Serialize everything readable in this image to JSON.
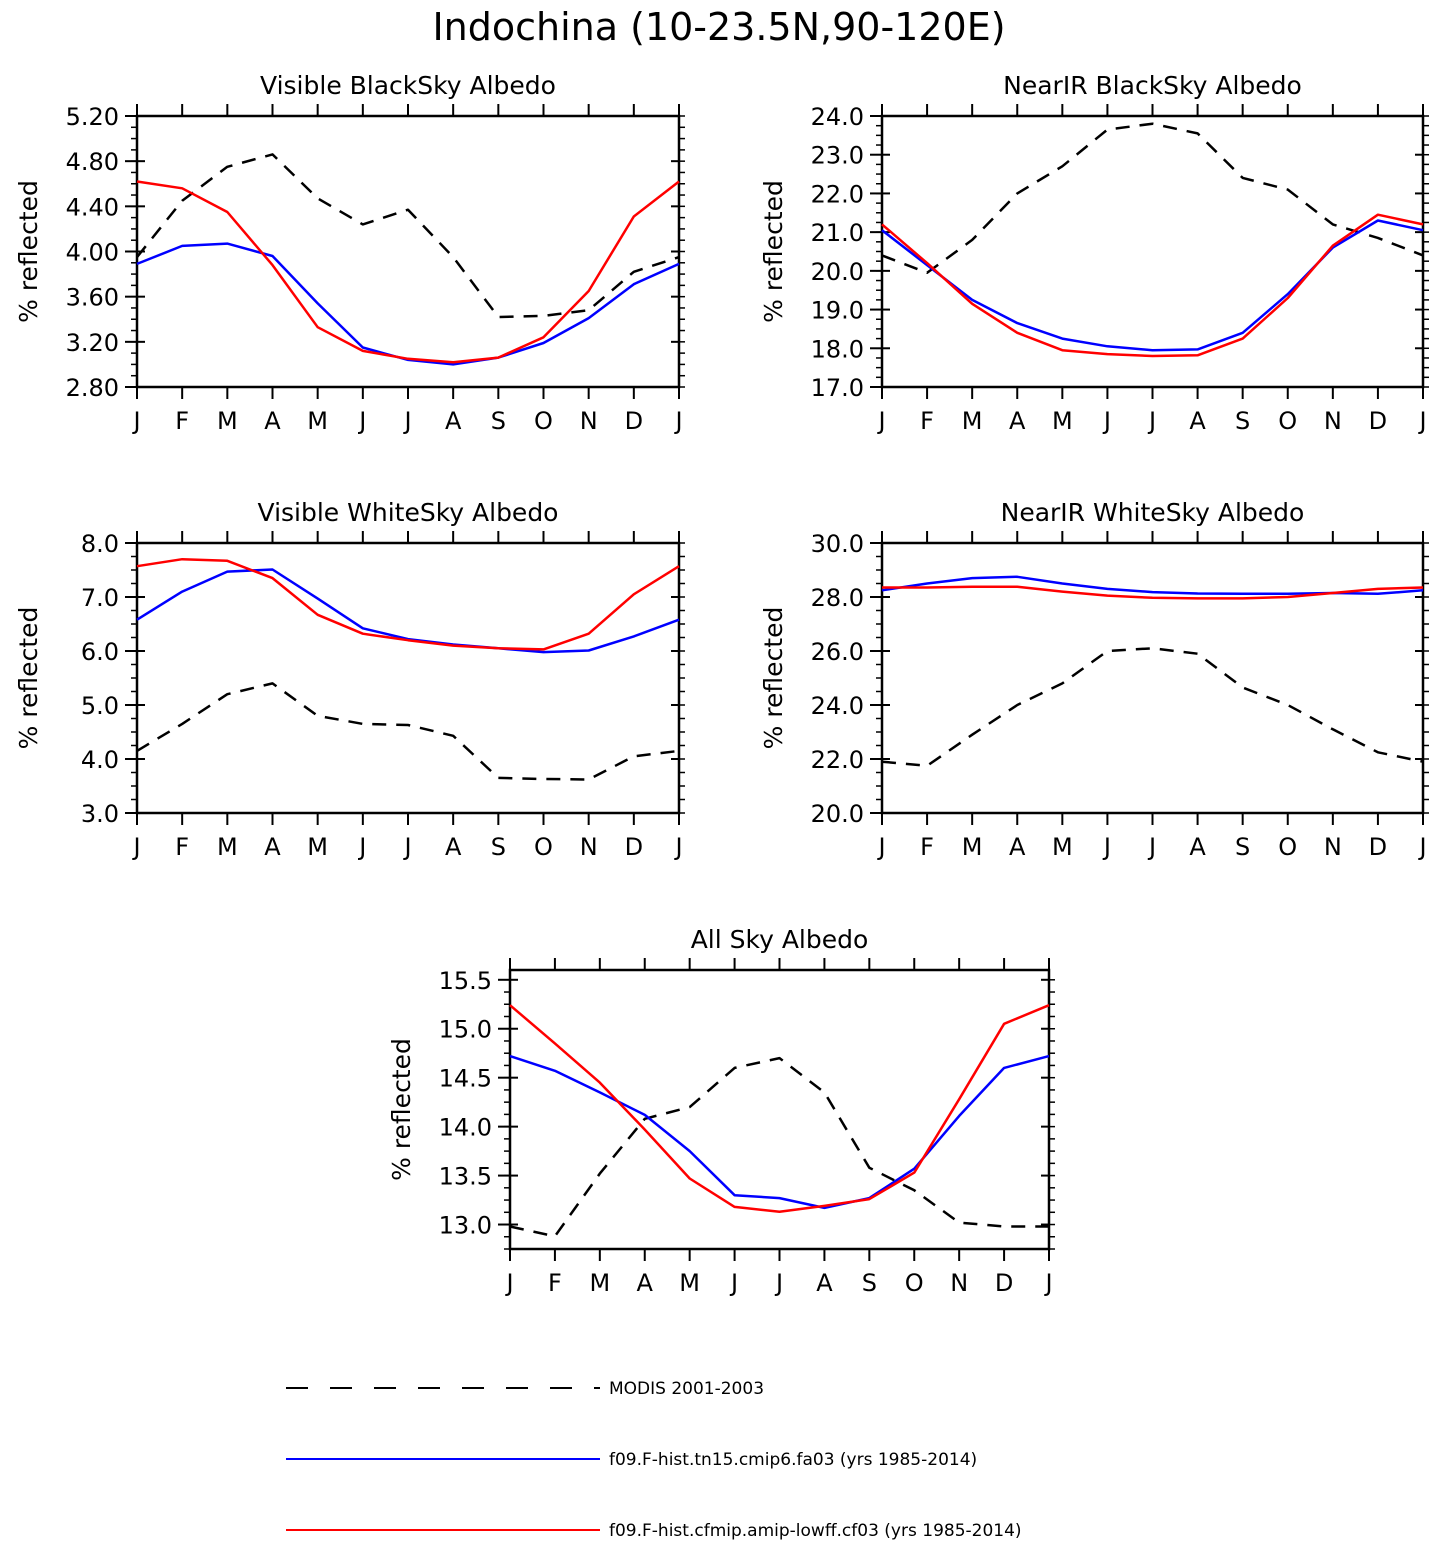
{
  "figure_title": "Indochina (10-23.5N,90-120E)",
  "colors": {
    "modis": "#000000",
    "model_a": "#0000ff",
    "model_b": "#ff0000"
  },
  "legend": [
    {
      "label": "MODIS 2001-2003",
      "color": "#000000",
      "dashed": true
    },
    {
      "label": "f09.F-hist.tn15.cmip6.fa03 (yrs 1985-2014)",
      "color": "#0000ff",
      "dashed": false
    },
    {
      "label": "f09.F-hist.cfmip.amip-lowff.cf03 (yrs 1985-2014)",
      "color": "#ff0000",
      "dashed": false
    }
  ],
  "chart_data": [
    {
      "type": "line",
      "title": "Visible BlackSky Albedo",
      "ylabel": "% reflected",
      "x": [
        "J",
        "F",
        "M",
        "A",
        "M",
        "J",
        "J",
        "A",
        "S",
        "O",
        "N",
        "D",
        "J"
      ],
      "ylim": [
        2.8,
        5.2
      ],
      "yticks": [
        "2.80",
        "3.20",
        "3.60",
        "4.00",
        "4.40",
        "4.80",
        "5.20"
      ],
      "series": [
        {
          "key": "modis",
          "dashed": true,
          "values": [
            3.95,
            4.45,
            4.75,
            4.86,
            4.47,
            4.24,
            4.37,
            3.95,
            3.42,
            3.43,
            3.48,
            3.82,
            3.95
          ]
        },
        {
          "key": "model_a",
          "dashed": false,
          "values": [
            3.89,
            4.05,
            4.07,
            3.96,
            3.54,
            3.15,
            3.04,
            3.0,
            3.06,
            3.19,
            3.41,
            3.71,
            3.89
          ]
        },
        {
          "key": "model_b",
          "dashed": false,
          "values": [
            4.62,
            4.56,
            4.35,
            3.88,
            3.33,
            3.12,
            3.05,
            3.02,
            3.06,
            3.24,
            3.65,
            4.31,
            4.62
          ]
        }
      ]
    },
    {
      "type": "line",
      "title": "NearIR BlackSky Albedo",
      "ylabel": "% reflected",
      "x": [
        "J",
        "F",
        "M",
        "A",
        "M",
        "J",
        "J",
        "A",
        "S",
        "O",
        "N",
        "D",
        "J"
      ],
      "ylim": [
        17.0,
        24.0
      ],
      "yticks": [
        "17.0",
        "18.0",
        "19.0",
        "20.0",
        "21.0",
        "22.0",
        "23.0",
        "24.0"
      ],
      "series": [
        {
          "key": "modis",
          "dashed": true,
          "values": [
            20.4,
            19.95,
            20.8,
            22.0,
            22.7,
            23.65,
            23.8,
            23.55,
            22.4,
            22.1,
            21.2,
            20.85,
            20.4
          ]
        },
        {
          "key": "model_a",
          "dashed": false,
          "values": [
            21.05,
            20.15,
            19.25,
            18.65,
            18.25,
            18.05,
            17.95,
            17.97,
            18.4,
            19.4,
            20.6,
            21.3,
            21.05
          ]
        },
        {
          "key": "model_b",
          "dashed": false,
          "values": [
            21.2,
            20.2,
            19.15,
            18.4,
            17.95,
            17.85,
            17.8,
            17.82,
            18.25,
            19.3,
            20.65,
            21.45,
            21.2
          ]
        }
      ]
    },
    {
      "type": "line",
      "title": "Visible WhiteSky Albedo",
      "ylabel": "% reflected",
      "x": [
        "J",
        "F",
        "M",
        "A",
        "M",
        "J",
        "J",
        "A",
        "S",
        "O",
        "N",
        "D",
        "J"
      ],
      "ylim": [
        3.0,
        8.0
      ],
      "yticks": [
        "3.0",
        "4.0",
        "5.0",
        "6.0",
        "7.0",
        "8.0"
      ],
      "series": [
        {
          "key": "modis",
          "dashed": true,
          "values": [
            4.15,
            4.65,
            5.2,
            5.4,
            4.8,
            4.65,
            4.63,
            4.43,
            3.65,
            3.63,
            3.62,
            4.05,
            4.15
          ]
        },
        {
          "key": "model_a",
          "dashed": false,
          "values": [
            6.58,
            7.1,
            7.47,
            7.51,
            6.97,
            6.42,
            6.22,
            6.12,
            6.05,
            5.98,
            6.01,
            6.27,
            6.58
          ]
        },
        {
          "key": "model_b",
          "dashed": false,
          "values": [
            7.57,
            7.7,
            7.67,
            7.35,
            6.67,
            6.32,
            6.2,
            6.1,
            6.05,
            6.03,
            6.32,
            7.05,
            7.57
          ]
        }
      ]
    },
    {
      "type": "line",
      "title": "NearIR WhiteSky Albedo",
      "ylabel": "% reflected",
      "x": [
        "J",
        "F",
        "M",
        "A",
        "M",
        "J",
        "J",
        "A",
        "S",
        "O",
        "N",
        "D",
        "J"
      ],
      "ylim": [
        20.0,
        30.0
      ],
      "yticks": [
        "20.0",
        "22.0",
        "24.0",
        "26.0",
        "28.0",
        "30.0"
      ],
      "series": [
        {
          "key": "modis",
          "dashed": true,
          "values": [
            21.9,
            21.75,
            22.9,
            24.0,
            24.8,
            26.0,
            26.1,
            25.9,
            24.65,
            24.0,
            23.1,
            22.25,
            21.9
          ]
        },
        {
          "key": "model_a",
          "dashed": false,
          "values": [
            28.25,
            28.5,
            28.7,
            28.75,
            28.5,
            28.3,
            28.18,
            28.13,
            28.12,
            28.12,
            28.15,
            28.12,
            28.25
          ]
        },
        {
          "key": "model_b",
          "dashed": false,
          "values": [
            28.35,
            28.35,
            28.38,
            28.38,
            28.2,
            28.05,
            27.97,
            27.95,
            27.95,
            28.0,
            28.15,
            28.3,
            28.35
          ]
        }
      ]
    },
    {
      "type": "line",
      "title": "All Sky Albedo",
      "ylabel": "% reflected",
      "x": [
        "J",
        "F",
        "M",
        "A",
        "M",
        "J",
        "J",
        "A",
        "S",
        "O",
        "N",
        "D",
        "J"
      ],
      "ylim": [
        12.75,
        15.6
      ],
      "yticks": [
        "13.0",
        "13.5",
        "14.0",
        "14.5",
        "15.0",
        "15.5"
      ],
      "series": [
        {
          "key": "modis",
          "dashed": true,
          "values": [
            12.98,
            12.88,
            13.52,
            14.08,
            14.2,
            14.6,
            14.7,
            14.35,
            13.58,
            13.35,
            13.02,
            12.98,
            12.98
          ]
        },
        {
          "key": "model_a",
          "dashed": false,
          "values": [
            14.72,
            14.57,
            14.35,
            14.12,
            13.75,
            13.3,
            13.27,
            13.17,
            13.27,
            13.57,
            14.11,
            14.6,
            14.72
          ]
        },
        {
          "key": "model_b",
          "dashed": false,
          "values": [
            15.24,
            14.85,
            14.45,
            13.97,
            13.47,
            13.18,
            13.13,
            13.19,
            13.26,
            13.53,
            14.28,
            15.05,
            15.24
          ]
        }
      ]
    }
  ]
}
